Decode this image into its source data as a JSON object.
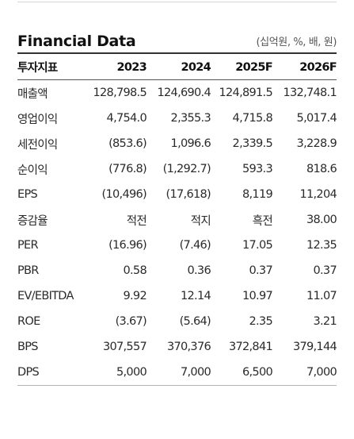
{
  "header": {
    "title": "Financial Data",
    "unit": "(십억원, %, 배, 원)"
  },
  "table": {
    "columns": [
      "투자지표",
      "2023",
      "2024",
      "2025F",
      "2026F"
    ],
    "rows": [
      {
        "label": "매출액",
        "values": [
          "128,798.5",
          "124,690.4",
          "124,891.5",
          "132,748.1"
        ]
      },
      {
        "label": "영업이익",
        "values": [
          "4,754.0",
          "2,355.3",
          "4,715.8",
          "5,017.4"
        ]
      },
      {
        "label": "세전이익",
        "values": [
          "(853.6)",
          "1,096.6",
          "2,339.5",
          "3,228.9"
        ]
      },
      {
        "label": "순이익",
        "values": [
          "(776.8)",
          "(1,292.7)",
          "593.3",
          "818.6"
        ]
      },
      {
        "label": "EPS",
        "values": [
          "(10,496)",
          "(17,618)",
          "8,119",
          "11,204"
        ]
      },
      {
        "label": "증감율",
        "values": [
          "적전",
          "적지",
          "흑전",
          "38.00"
        ]
      },
      {
        "label": "PER",
        "values": [
          "(16.96)",
          "(7.46)",
          "17.05",
          "12.35"
        ]
      },
      {
        "label": "PBR",
        "values": [
          "0.58",
          "0.36",
          "0.37",
          "0.37"
        ]
      },
      {
        "label": "EV/EBITDA",
        "values": [
          "9.92",
          "12.14",
          "10.97",
          "11.07"
        ]
      },
      {
        "label": "ROE",
        "values": [
          "(3.67)",
          "(5.64)",
          "2.35",
          "3.21"
        ]
      },
      {
        "label": "BPS",
        "values": [
          "307,557",
          "370,376",
          "372,841",
          "379,144"
        ]
      },
      {
        "label": "DPS",
        "values": [
          "5,000",
          "7,000",
          "6,500",
          "7,000"
        ]
      }
    ]
  }
}
